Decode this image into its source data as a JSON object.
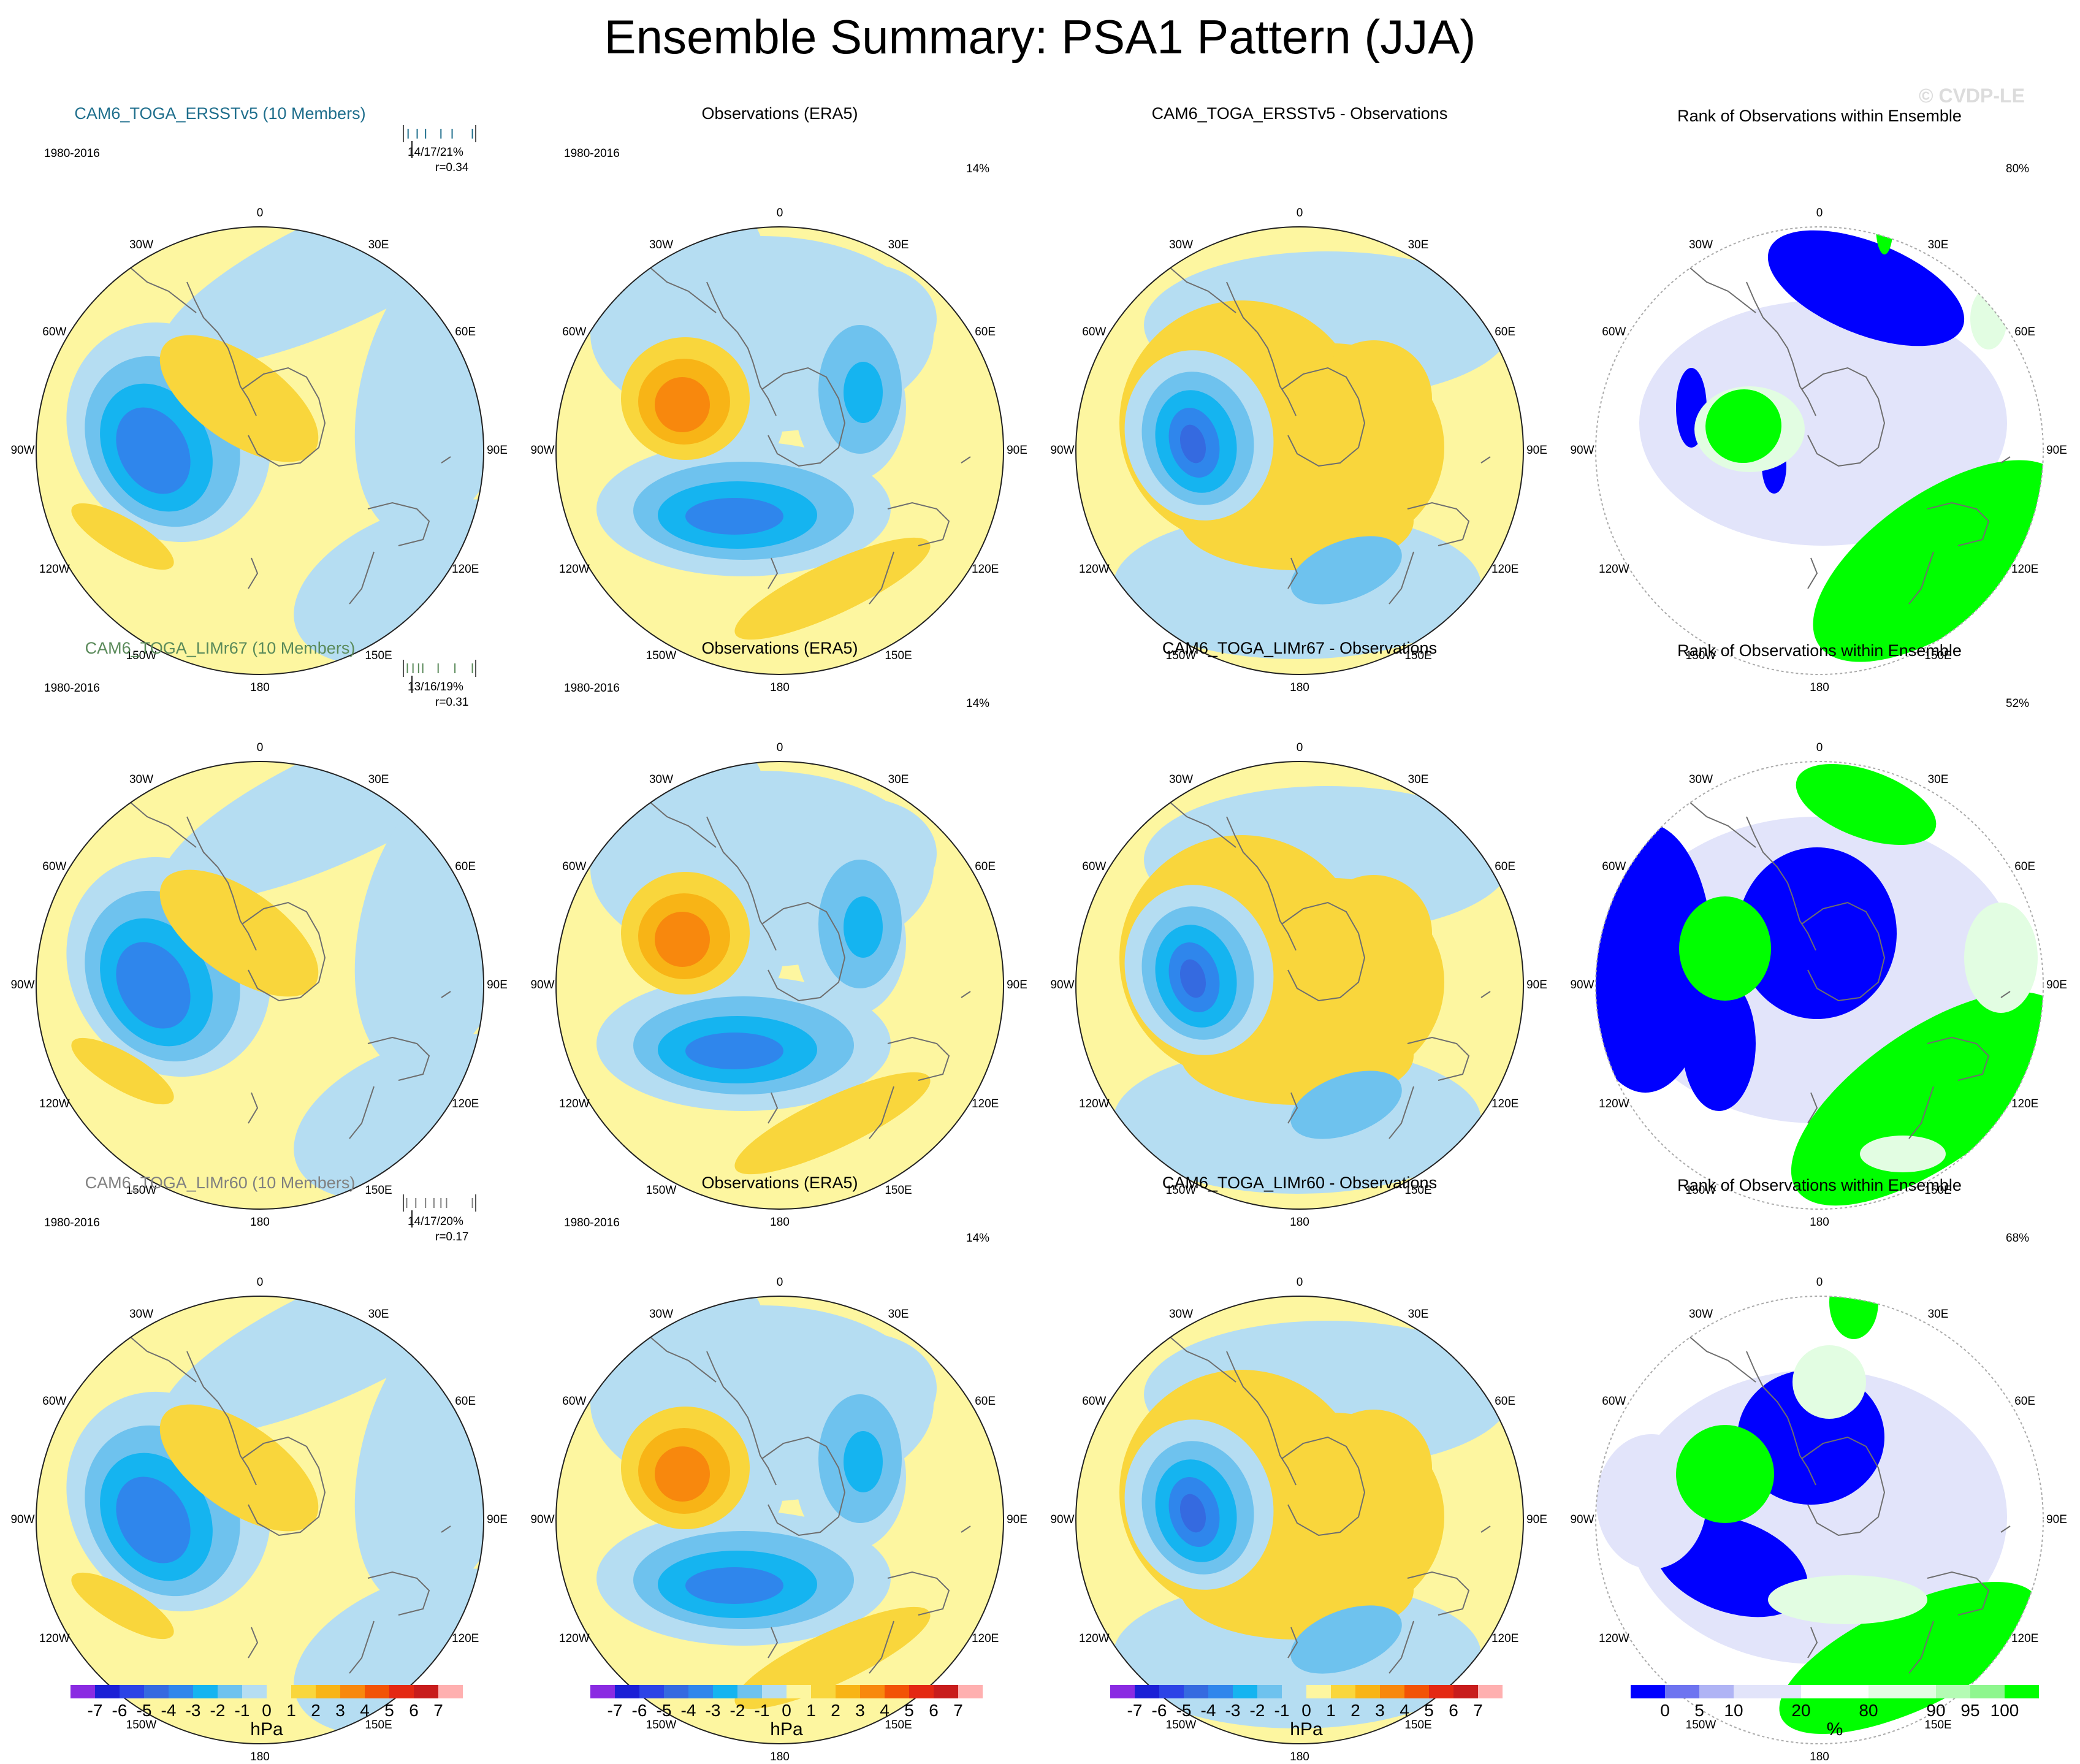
{
  "title": "Ensemble Summary: PSA1 Pattern (JJA)",
  "watermark": "© CVDP-LE",
  "period": "1980-2016",
  "lon_labels": [
    "0",
    "30E",
    "60E",
    "90E",
    "120E",
    "150E",
    "180",
    "150W",
    "120W",
    "90W",
    "60W",
    "30W"
  ],
  "colors": {
    "land_outline": "#6e6e6e",
    "contour": [
      "#8a2be2",
      "#1b1fd6",
      "#2c43e6",
      "#356ae0",
      "#2f86ec",
      "#15b4f0",
      "#6ec2ee",
      "#b5ddf2",
      "#fdf6a0",
      "#f9d63c",
      "#f8b416",
      "#f8880d",
      "#f25306",
      "#e42812",
      "#c81c1c",
      "#ffb0b0"
    ],
    "rank": [
      "#0000ff",
      "#6e74f0",
      "#b0b4f5",
      "#e2e4fa",
      "#ffffff",
      "#e2fde2",
      "#b4fbb4",
      "#8ef68e",
      "#00ff00"
    ]
  },
  "rows": [
    {
      "model": "CAM6_TOGA_ERSSTv5 (10 Members)",
      "model_color": "#1e6e8c",
      "stats": "14/17/21%",
      "r": "r=0.34",
      "obs_title": "Observations (ERA5)",
      "obs_pct": "14%",
      "diff_title": "CAM6_TOGA_ERSSTv5 - Observations",
      "rank_title": "Rank of Observations within Ensemble",
      "rank_pct": "80%",
      "ticks": [
        0.05,
        0.18,
        0.3,
        0.52,
        0.68,
        0.97
      ]
    },
    {
      "model": "CAM6_TOGA_LIMr67 (10 Members)",
      "model_color": "#5a8a5a",
      "stats": "13/16/19%",
      "r": "r=0.31",
      "obs_title": "Observations (ERA5)",
      "obs_pct": "14%",
      "diff_title": "CAM6_TOGA_LIMr67 - Observations",
      "rank_title": "Rank of Observations within Ensemble",
      "rank_pct": "52%",
      "ticks": [
        0.04,
        0.12,
        0.2,
        0.26,
        0.48,
        0.72,
        0.97
      ]
    },
    {
      "model": "CAM6_TOGA_LIMr60 (10 Members)",
      "model_color": "#808080",
      "stats": "14/17/20%",
      "r": "r=0.17",
      "obs_title": "Observations (ERA5)",
      "obs_pct": "14%",
      "diff_title": "CAM6_TOGA_LIMr60 - Observations",
      "rank_title": "Rank of Observations within Ensemble",
      "rank_pct": "68%",
      "ticks": [
        0.03,
        0.16,
        0.3,
        0.42,
        0.52,
        0.6,
        0.97
      ]
    }
  ],
  "colorbar_hpa": {
    "labels": [
      "-7",
      "-6",
      "-5",
      "-4",
      "-3",
      "-2",
      "-1",
      "0",
      "1",
      "2",
      "3",
      "4",
      "5",
      "6",
      "7"
    ],
    "unit": "hPa"
  },
  "colorbar_rank": {
    "labels": [
      "0",
      "5",
      "10",
      "20",
      "80",
      "90",
      "95",
      "100"
    ],
    "unit": "%"
  }
}
